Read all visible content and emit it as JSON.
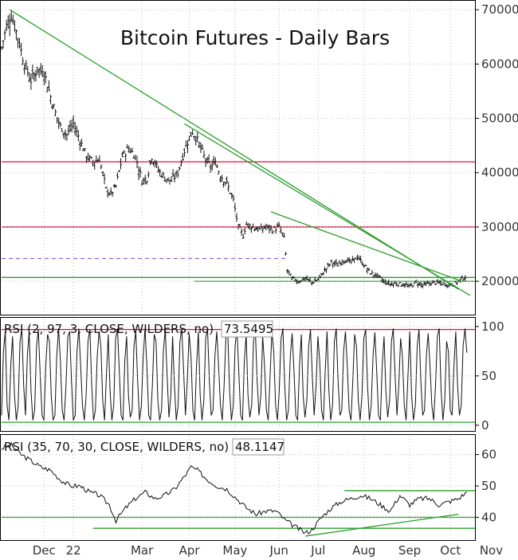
{
  "chart_data": [
    {
      "panel": "price",
      "type": "ohlc",
      "title": "Bitcoin Futures - Daily Bars",
      "ylim": [
        14000,
        71500
      ],
      "yticks": [
        20000,
        30000,
        40000,
        50000,
        60000,
        70000
      ],
      "ytick_labels": [
        "20000",
        "30000",
        "40000",
        "50000",
        "60000",
        "70000"
      ],
      "closes": [
        [
          0,
          63000
        ],
        [
          3,
          67000
        ],
        [
          6,
          69000
        ],
        [
          10,
          65000
        ],
        [
          14,
          60000
        ],
        [
          18,
          57000
        ],
        [
          22,
          59000
        ],
        [
          26,
          58500
        ],
        [
          30,
          54000
        ],
        [
          33,
          51000
        ],
        [
          36,
          48500
        ],
        [
          40,
          47000
        ],
        [
          44,
          49000
        ],
        [
          48,
          46000
        ],
        [
          52,
          43000
        ],
        [
          56,
          42000
        ],
        [
          60,
          42500
        ],
        [
          64,
          37000
        ],
        [
          67,
          36000
        ],
        [
          70,
          37500
        ],
        [
          74,
          43000
        ],
        [
          78,
          44500
        ],
        [
          82,
          43000
        ],
        [
          86,
          38500
        ],
        [
          89,
          39000
        ],
        [
          92,
          43000
        ],
        [
          96,
          40500
        ],
        [
          100,
          39000
        ],
        [
          104,
          38500
        ],
        [
          108,
          40000
        ],
        [
          112,
          44000
        ],
        [
          115,
          46500
        ],
        [
          117,
          47500
        ],
        [
          120,
          46000
        ],
        [
          124,
          43000
        ],
        [
          128,
          41000
        ],
        [
          131,
          42000
        ],
        [
          134,
          39500
        ],
        [
          138,
          38000
        ],
        [
          142,
          35000
        ],
        [
          145,
          30000
        ],
        [
          148,
          28500
        ],
        [
          150,
          30500
        ],
        [
          154,
          30000
        ],
        [
          158,
          29500
        ],
        [
          162,
          30000
        ],
        [
          166,
          29500
        ],
        [
          170,
          30000
        ],
        [
          173,
          28000
        ],
        [
          175,
          22000
        ],
        [
          178,
          20500
        ],
        [
          182,
          20000
        ],
        [
          186,
          20500
        ],
        [
          190,
          19800
        ],
        [
          194,
          20300
        ],
        [
          198,
          22000
        ],
        [
          202,
          23500
        ],
        [
          206,
          23000
        ],
        [
          210,
          24000
        ],
        [
          214,
          23500
        ],
        [
          218,
          24500
        ],
        [
          222,
          23000
        ],
        [
          226,
          21500
        ],
        [
          230,
          21000
        ],
        [
          234,
          20000
        ],
        [
          238,
          19500
        ],
        [
          242,
          19600
        ],
        [
          246,
          19400
        ],
        [
          250,
          19000
        ],
        [
          254,
          19800
        ],
        [
          258,
          19300
        ],
        [
          262,
          19600
        ],
        [
          266,
          19800
        ],
        [
          270,
          19500
        ],
        [
          274,
          19300
        ],
        [
          278,
          19600
        ],
        [
          282,
          20500
        ],
        [
          285,
          21000
        ]
      ],
      "trendlines": [
        {
          "from": [
            5,
            70000
          ],
          "to": [
            280,
            18500
          ],
          "color": "#2a9d2a"
        },
        {
          "from": [
            112,
            49000
          ],
          "to": [
            287,
            17400
          ],
          "color": "#2a9d2a"
        },
        {
          "from": [
            165,
            32800
          ],
          "to": [
            282,
            20000
          ],
          "color": "#2a9d2a"
        }
      ],
      "horizontal_lines": [
        {
          "y": 42000,
          "color": "#e0103a",
          "style": "solid"
        },
        {
          "y": 30000,
          "color": "#e0103a",
          "style": "solid"
        },
        {
          "y": 24200,
          "color": "#9b5fd4",
          "style": "dashed",
          "x_end": 175
        },
        {
          "y": 20700,
          "color": "#2a9d2a",
          "style": "solid"
        },
        {
          "y": 20000,
          "color": "#2a9d2a",
          "style": "solid",
          "x_start": 118
        }
      ]
    },
    {
      "panel": "rsi-short",
      "type": "line",
      "label": "RSI (2, 97, 3, CLOSE, WILDERS, no)",
      "value_label": "73.5495",
      "ylim": [
        -5,
        108
      ],
      "yticks": [
        0,
        50,
        100
      ],
      "ytick_labels": [
        "0",
        "50",
        "100"
      ],
      "values": [
        10,
        75,
        95,
        20,
        5,
        60,
        90,
        30,
        5,
        20,
        85,
        98,
        40,
        10,
        70,
        95,
        35,
        5,
        15,
        80,
        97,
        50,
        10,
        5,
        60,
        92,
        85,
        30,
        5,
        10,
        70,
        98,
        65,
        15,
        5,
        40,
        90,
        95,
        45,
        5,
        10,
        75,
        98,
        60,
        20,
        5,
        30,
        85,
        97,
        40,
        5,
        15,
        70,
        95,
        80,
        25,
        5,
        50,
        92,
        35,
        5,
        20,
        88,
        98,
        55,
        10,
        5,
        65,
        90,
        30,
        8,
        15,
        80,
        95,
        45,
        5,
        20,
        70,
        98,
        60,
        10,
        5,
        40,
        92,
        85,
        25,
        5,
        15,
        75,
        97,
        50,
        8,
        30,
        90,
        40,
        5,
        20,
        85,
        98,
        55,
        10,
        45,
        93,
        70,
        15,
        5,
        60,
        95,
        30,
        5,
        25,
        88,
        98,
        45,
        10,
        15,
        70,
        95,
        60,
        20,
        5,
        40,
        90,
        95,
        35,
        5,
        20,
        80,
        98,
        55,
        10,
        5,
        65,
        92,
        30,
        8,
        20,
        85,
        97,
        45,
        10,
        30,
        90,
        60,
        15,
        5,
        50,
        95,
        75,
        20,
        5,
        35,
        88,
        98,
        40,
        5,
        15,
        70,
        93,
        55,
        10,
        5,
        60,
        92,
        30,
        8,
        25,
        80,
        97,
        50,
        10,
        40,
        90,
        65,
        15,
        5,
        55,
        95,
        35,
        5,
        20,
        85,
        98,
        45,
        10,
        15,
        75,
        95,
        60,
        15,
        5,
        45,
        92,
        80,
        25,
        5,
        30,
        88,
        97,
        40,
        5,
        20,
        70,
        94,
        55,
        10,
        5,
        60,
        90,
        35,
        8,
        25,
        85,
        98,
        50,
        10,
        40,
        88,
        70,
        20,
        5,
        50,
        95,
        30,
        5,
        20,
        80,
        97,
        45,
        10,
        15,
        70,
        93,
        60,
        20,
        5,
        40,
        90,
        98,
        35,
        5,
        25,
        85,
        75,
        15,
        10,
        60,
        95,
        40,
        10,
        20,
        80,
        98,
        73.5
      ],
      "horizontal_lines": [
        {
          "y": 97,
          "color": "#e0103a"
        },
        {
          "y": 3,
          "color": "#2a9d2a"
        }
      ]
    },
    {
      "panel": "rsi-long",
      "type": "line",
      "label": "RSI (35, 70, 30, CLOSE, WILDERS, no)",
      "value_label": "48.1147",
      "ylim": [
        33,
        66
      ],
      "yticks": [
        40,
        50,
        60
      ],
      "ytick_labels": [
        "40",
        "50",
        "60"
      ],
      "values": [
        [
          0,
          62
        ],
        [
          6,
          63
        ],
        [
          12,
          60
        ],
        [
          18,
          58
        ],
        [
          24,
          56
        ],
        [
          30,
          55
        ],
        [
          36,
          52
        ],
        [
          42,
          50
        ],
        [
          48,
          50
        ],
        [
          54,
          48
        ],
        [
          60,
          47
        ],
        [
          66,
          44
        ],
        [
          70,
          39
        ],
        [
          76,
          43
        ],
        [
          82,
          46
        ],
        [
          88,
          48
        ],
        [
          94,
          46
        ],
        [
          100,
          47
        ],
        [
          106,
          49
        ],
        [
          112,
          53
        ],
        [
          116,
          56
        ],
        [
          120,
          55
        ],
        [
          126,
          52
        ],
        [
          132,
          50
        ],
        [
          138,
          49
        ],
        [
          144,
          46
        ],
        [
          150,
          43
        ],
        [
          156,
          41
        ],
        [
          162,
          42
        ],
        [
          168,
          42
        ],
        [
          174,
          39
        ],
        [
          180,
          37
        ],
        [
          186,
          35
        ],
        [
          190,
          36
        ],
        [
          196,
          40
        ],
        [
          202,
          43
        ],
        [
          208,
          45
        ],
        [
          214,
          46
        ],
        [
          220,
          47
        ],
        [
          226,
          46
        ],
        [
          232,
          44
        ],
        [
          238,
          42
        ],
        [
          244,
          47
        ],
        [
          250,
          44
        ],
        [
          256,
          46
        ],
        [
          262,
          46
        ],
        [
          268,
          44
        ],
        [
          274,
          45
        ],
        [
          280,
          46
        ],
        [
          285,
          48
        ]
      ],
      "horizontal_lines": [
        {
          "y": 40,
          "color": "#2a9d2a"
        },
        {
          "y": 36.5,
          "color": "#2a9d2a",
          "x_start": 56
        },
        {
          "y": 48.5,
          "color": "#2a9d2a",
          "x_start": 210
        }
      ],
      "trendlines": [
        {
          "from": [
            186,
            34
          ],
          "to": [
            280,
            41
          ],
          "color": "#2a9d2a"
        }
      ]
    }
  ],
  "x_axis": {
    "domain": [
      0,
      290
    ],
    "ticks": [
      {
        "x": 26,
        "label": "Dec"
      },
      {
        "x": 44,
        "label": "22"
      },
      {
        "x": 86,
        "label": "Mar"
      },
      {
        "x": 115,
        "label": "Apr"
      },
      {
        "x": 143,
        "label": "May"
      },
      {
        "x": 170,
        "label": "Jun"
      },
      {
        "x": 194,
        "label": "Jul"
      },
      {
        "x": 222,
        "label": "Aug"
      },
      {
        "x": 250,
        "label": "Sep"
      },
      {
        "x": 275,
        "label": "Oct"
      },
      {
        "x": 300,
        "label": "Nov"
      }
    ]
  },
  "colors": {
    "bars": "#111111",
    "support": "#2a9d2a",
    "resistance": "#e0103a",
    "dashed": "#9b5fd4",
    "grid": "#bbbbbb"
  }
}
